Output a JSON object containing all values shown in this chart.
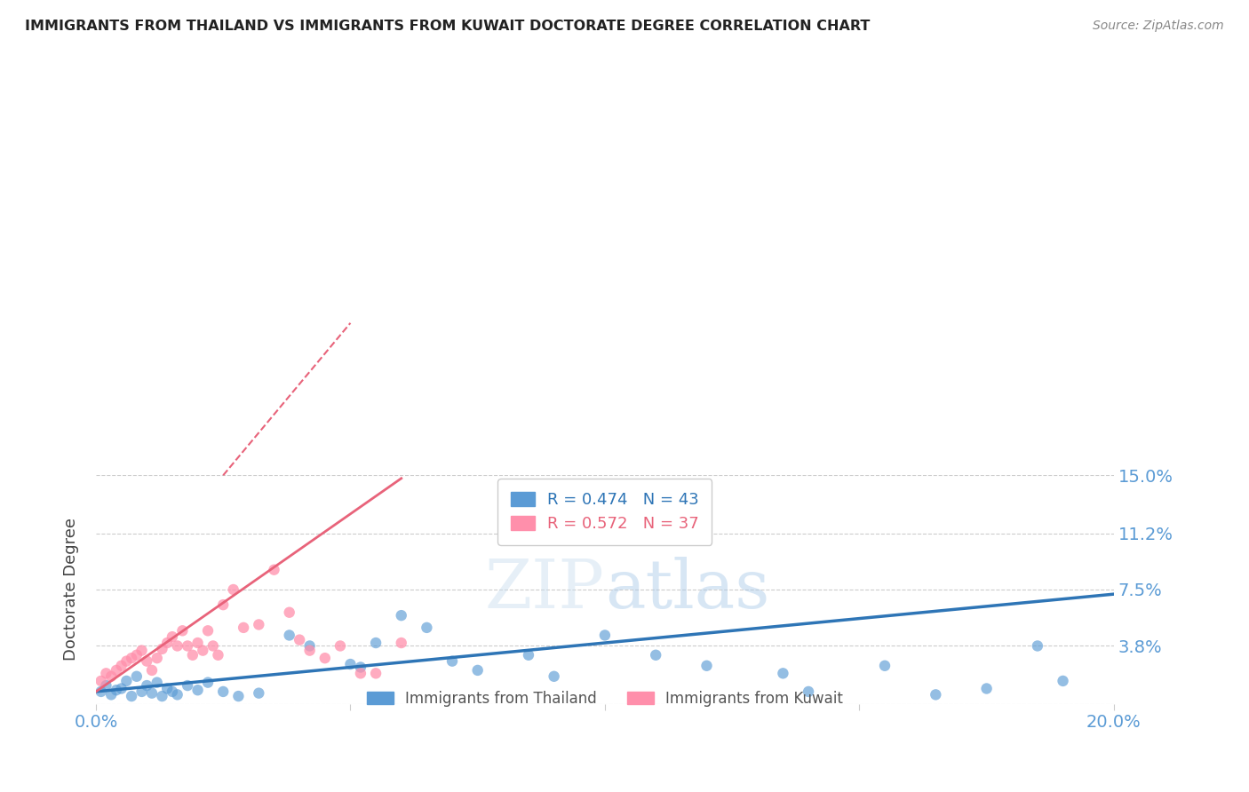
{
  "title": "IMMIGRANTS FROM THAILAND VS IMMIGRANTS FROM KUWAIT DOCTORATE DEGREE CORRELATION CHART",
  "source": "Source: ZipAtlas.com",
  "ylabel": "Doctorate Degree",
  "legend_label_blue": "Immigrants from Thailand",
  "legend_label_pink": "Immigrants from Kuwait",
  "R_blue": 0.474,
  "N_blue": 43,
  "R_pink": 0.572,
  "N_pink": 37,
  "xlim": [
    0.0,
    0.2
  ],
  "ylim": [
    0.0,
    0.15
  ],
  "xticks": [
    0.0,
    0.05,
    0.1,
    0.15,
    0.2
  ],
  "xtick_labels": [
    "0.0%",
    "",
    "",
    "",
    "20.0%"
  ],
  "yticks": [
    0.0,
    0.038,
    0.075,
    0.112,
    0.15
  ],
  "ytick_labels": [
    "",
    "3.8%",
    "7.5%",
    "11.2%",
    "15.0%"
  ],
  "color_blue": "#5B9BD5",
  "color_pink": "#FF8FAB",
  "color_blue_line": "#2E75B6",
  "color_pink_line": "#E8637A",
  "blue_scatter_x": [
    0.001,
    0.002,
    0.003,
    0.004,
    0.005,
    0.006,
    0.007,
    0.008,
    0.009,
    0.01,
    0.011,
    0.012,
    0.013,
    0.014,
    0.015,
    0.016,
    0.018,
    0.02,
    0.022,
    0.025,
    0.028,
    0.032,
    0.038,
    0.042,
    0.05,
    0.052,
    0.055,
    0.06,
    0.065,
    0.07,
    0.075,
    0.085,
    0.09,
    0.1,
    0.11,
    0.12,
    0.135,
    0.14,
    0.155,
    0.165,
    0.175,
    0.185,
    0.19
  ],
  "blue_scatter_y": [
    0.008,
    0.012,
    0.006,
    0.009,
    0.01,
    0.015,
    0.005,
    0.018,
    0.008,
    0.012,
    0.007,
    0.014,
    0.005,
    0.01,
    0.008,
    0.006,
    0.012,
    0.009,
    0.014,
    0.008,
    0.005,
    0.007,
    0.045,
    0.038,
    0.026,
    0.024,
    0.04,
    0.058,
    0.05,
    0.028,
    0.022,
    0.032,
    0.018,
    0.045,
    0.032,
    0.025,
    0.02,
    0.008,
    0.025,
    0.006,
    0.01,
    0.038,
    0.015
  ],
  "pink_scatter_x": [
    0.001,
    0.002,
    0.003,
    0.004,
    0.005,
    0.006,
    0.007,
    0.008,
    0.009,
    0.01,
    0.011,
    0.012,
    0.013,
    0.014,
    0.015,
    0.016,
    0.017,
    0.018,
    0.019,
    0.02,
    0.021,
    0.022,
    0.023,
    0.024,
    0.025,
    0.027,
    0.029,
    0.032,
    0.035,
    0.038,
    0.04,
    0.042,
    0.045,
    0.048,
    0.052,
    0.055,
    0.06
  ],
  "pink_scatter_y": [
    0.015,
    0.02,
    0.018,
    0.022,
    0.025,
    0.028,
    0.03,
    0.032,
    0.035,
    0.028,
    0.022,
    0.03,
    0.036,
    0.04,
    0.044,
    0.038,
    0.048,
    0.038,
    0.032,
    0.04,
    0.035,
    0.048,
    0.038,
    0.032,
    0.065,
    0.075,
    0.05,
    0.052,
    0.088,
    0.06,
    0.042,
    0.035,
    0.03,
    0.038,
    0.02,
    0.02,
    0.04
  ],
  "blue_line_x0": 0.0,
  "blue_line_x1": 0.2,
  "blue_line_y0": 0.008,
  "blue_line_y1": 0.072,
  "pink_line_x0": 0.0,
  "pink_line_x1": 0.06,
  "pink_line_y0": 0.008,
  "pink_line_y1": 0.148,
  "pink_line_dash_x0": 0.0,
  "pink_line_dash_x1": 0.06,
  "pink_line_dash_y0": 0.008,
  "pink_line_dash_y1": 0.148
}
